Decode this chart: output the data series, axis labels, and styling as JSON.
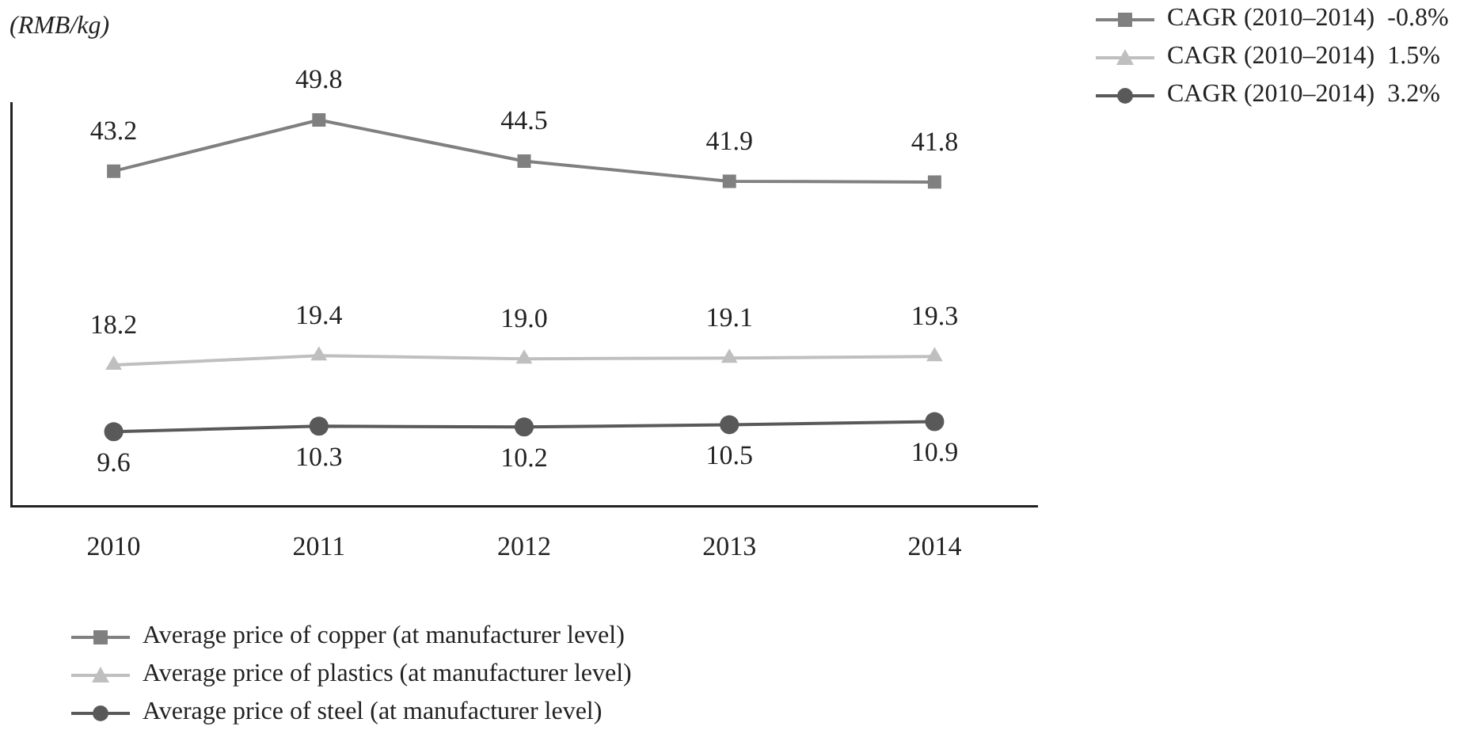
{
  "chart_data": {
    "type": "line",
    "ylabel": "(RMB/kg)",
    "categories": [
      "2010",
      "2011",
      "2012",
      "2013",
      "2014"
    ],
    "series": [
      {
        "name": "Average price of copper (at manufacturer level)",
        "color": "#808080",
        "marker": "square",
        "values": [
          43.2,
          49.8,
          44.5,
          41.9,
          41.8
        ],
        "value_labels": [
          "43.2",
          "49.8",
          "44.5",
          "41.9",
          "41.8"
        ]
      },
      {
        "name": "Average price of plastics (at manufacturer level)",
        "color": "#bfbfbf",
        "marker": "triangle",
        "values": [
          18.2,
          19.4,
          19.0,
          19.1,
          19.3
        ],
        "value_labels": [
          "18.2",
          "19.4",
          "19.0",
          "19.1",
          "19.3"
        ]
      },
      {
        "name": "Average price of steel (at manufacturer level)",
        "color": "#595959",
        "marker": "circle",
        "values": [
          9.6,
          10.3,
          10.2,
          10.5,
          10.9
        ],
        "value_labels": [
          "9.6",
          "10.3",
          "10.2",
          "10.5",
          "10.9"
        ]
      }
    ],
    "annotations": [
      "CAGR (2010–2014)  -0.8%",
      "CAGR (2010–2014)  1.5%",
      "CAGR (2010–2014)  3.2%"
    ],
    "ylim": [
      0,
      52
    ],
    "tick_labels": "x",
    "grid": false,
    "legend": "bottom left",
    "line_style": "solid"
  }
}
